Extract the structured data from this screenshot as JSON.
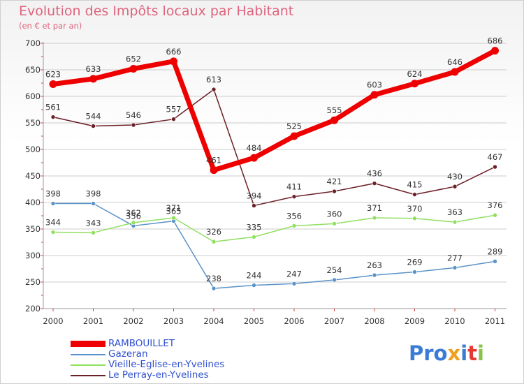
{
  "chart_data": {
    "type": "line",
    "title": "Evolution des Impôts locaux par Habitant",
    "subtitle": "(en € et par an)",
    "x": [
      "2000",
      "2001",
      "2002",
      "2003",
      "2004",
      "2005",
      "2006",
      "2007",
      "2008",
      "2009",
      "2010",
      "2011"
    ],
    "ylim": [
      200,
      700
    ],
    "yticks": [
      "200",
      "250",
      "300",
      "350",
      "400",
      "450",
      "500",
      "550",
      "600",
      "650",
      "700"
    ],
    "series": [
      {
        "name": "RAMBOUILLET",
        "color": "#ee0000",
        "values": [
          623,
          633,
          652,
          666,
          461,
          484,
          525,
          555,
          603,
          624,
          646,
          686
        ],
        "labels": [
          "623",
          "633",
          "652",
          "666",
          "461",
          "484",
          "525",
          "555",
          "603",
          "624",
          "646",
          "686"
        ]
      },
      {
        "name": "Gazeran",
        "color": "#5b92c8",
        "values": [
          398,
          398,
          356,
          365,
          238,
          244,
          247,
          254,
          263,
          269,
          277,
          289
        ],
        "labels": [
          "398",
          "398",
          "356",
          "365",
          "238",
          "244",
          "247",
          "254",
          "263",
          "269",
          "277",
          "289"
        ]
      },
      {
        "name": "Vieille-Eglise-en-Yvelines",
        "color": "#90e060",
        "values": [
          344,
          343,
          362,
          371,
          326,
          335,
          356,
          360,
          371,
          370,
          363,
          376
        ],
        "labels": [
          "344",
          "343",
          "362",
          "371",
          "326",
          "335",
          "356",
          "360",
          "371",
          "370",
          "363",
          "376"
        ]
      },
      {
        "name": "Le Perray-en-Yvelines",
        "color": "#6b1f26",
        "values": [
          561,
          544,
          546,
          557,
          613,
          394,
          411,
          421,
          436,
          415,
          430,
          467
        ],
        "labels": [
          "561",
          "544",
          "546",
          "557",
          "613",
          "394",
          "411",
          "421",
          "436",
          "415",
          "430",
          "467"
        ]
      }
    ]
  },
  "logo": {
    "p1": "Pro",
    "p2": "x",
    "p3": "i",
    "p4": "t",
    "p5": "i"
  }
}
